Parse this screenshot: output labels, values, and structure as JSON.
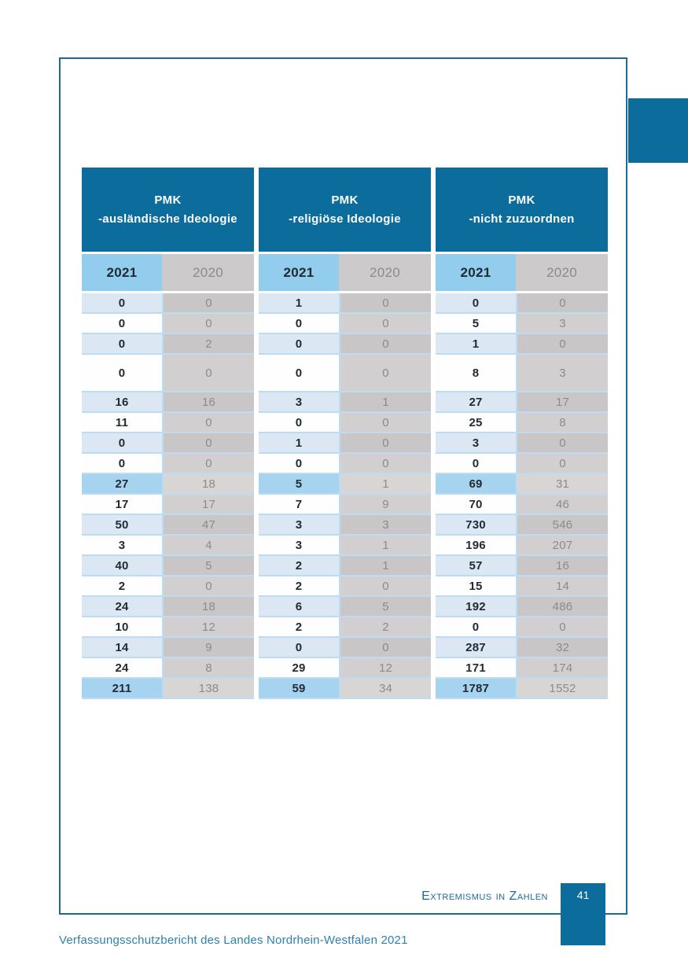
{
  "table": {
    "groups": [
      {
        "title_line1": "PMK",
        "title_line2": "-ausländische Ideologie"
      },
      {
        "title_line1": "PMK",
        "title_line2": "-religiöse Ideologie"
      },
      {
        "title_line1": "PMK",
        "title_line2": "-nicht zuzuordnen"
      }
    ],
    "year_columns": [
      "2021",
      "2020"
    ],
    "rows": [
      {
        "style": "blue",
        "tall": false,
        "values": [
          "0",
          "0",
          "1",
          "0",
          "0",
          "0"
        ]
      },
      {
        "style": "white",
        "tall": false,
        "values": [
          "0",
          "0",
          "0",
          "0",
          "5",
          "3"
        ]
      },
      {
        "style": "blue",
        "tall": false,
        "values": [
          "0",
          "2",
          "0",
          "0",
          "1",
          "0"
        ]
      },
      {
        "style": "white",
        "tall": true,
        "values": [
          "0",
          "0",
          "0",
          "0",
          "8",
          "3"
        ]
      },
      {
        "style": "blue",
        "tall": false,
        "values": [
          "16",
          "16",
          "3",
          "1",
          "27",
          "17"
        ]
      },
      {
        "style": "white",
        "tall": false,
        "values": [
          "11",
          "0",
          "0",
          "0",
          "25",
          "8"
        ]
      },
      {
        "style": "blue",
        "tall": false,
        "values": [
          "0",
          "0",
          "1",
          "0",
          "3",
          "0"
        ]
      },
      {
        "style": "white",
        "tall": false,
        "values": [
          "0",
          "0",
          "0",
          "0",
          "0",
          "0"
        ]
      },
      {
        "style": "subtotal",
        "tall": false,
        "values": [
          "27",
          "18",
          "5",
          "1",
          "69",
          "31"
        ]
      },
      {
        "style": "white",
        "tall": false,
        "values": [
          "17",
          "17",
          "7",
          "9",
          "70",
          "46"
        ]
      },
      {
        "style": "blue",
        "tall": false,
        "values": [
          "50",
          "47",
          "3",
          "3",
          "730",
          "546"
        ]
      },
      {
        "style": "white",
        "tall": false,
        "values": [
          "3",
          "4",
          "3",
          "1",
          "196",
          "207"
        ]
      },
      {
        "style": "blue",
        "tall": false,
        "values": [
          "40",
          "5",
          "2",
          "1",
          "57",
          "16"
        ]
      },
      {
        "style": "white",
        "tall": false,
        "values": [
          "2",
          "0",
          "2",
          "0",
          "15",
          "14"
        ]
      },
      {
        "style": "blue",
        "tall": false,
        "values": [
          "24",
          "18",
          "6",
          "5",
          "192",
          "486"
        ]
      },
      {
        "style": "white",
        "tall": false,
        "values": [
          "10",
          "12",
          "2",
          "2",
          "0",
          "0"
        ]
      },
      {
        "style": "blue",
        "tall": false,
        "values": [
          "14",
          "9",
          "0",
          "0",
          "287",
          "32"
        ]
      },
      {
        "style": "white",
        "tall": false,
        "values": [
          "24",
          "8",
          "29",
          "12",
          "171",
          "174"
        ]
      },
      {
        "style": "subtotal",
        "tall": false,
        "values": [
          "211",
          "138",
          "59",
          "34",
          "1787",
          "1552"
        ]
      }
    ]
  },
  "footer": {
    "section_title": "Extremismus in Zahlen",
    "page_number": "41",
    "caption": "Verfassungsschutzbericht des Landes Nordrhein-Westfalen 2021"
  },
  "colors": {
    "header_blue": "#0c6d9d",
    "accent_border": "#1d6a95",
    "subheader_2021_bg": "#92cdee",
    "subheader_2020_bg": "#cccaca",
    "row_blue": "#dbe8f4",
    "row_white": "#fefefe",
    "subtotal_2021_bg": "#a6d3f0",
    "subtotal_2020_bg": "#d8d6d4",
    "gray_odd": "#c8c6c6",
    "gray_even": "#d1cfcf",
    "grid_line": "#bcdcf1",
    "text_dark": "#222a33",
    "text_gray": "#8b8b8d",
    "footer_text": "#1e6b95",
    "caption_text": "#2f80ad"
  }
}
